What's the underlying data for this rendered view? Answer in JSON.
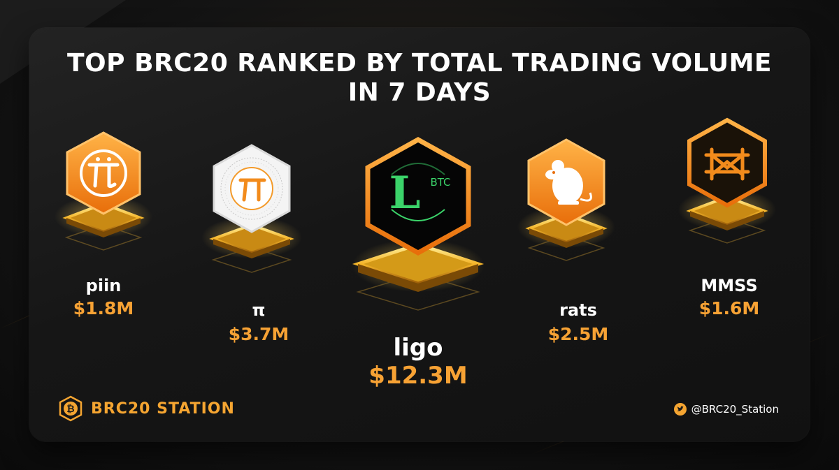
{
  "title": {
    "line1": "TOP BRC20 RANKED BY TOTAL TRADING VOLUME",
    "line2": "IN 7 DAYS"
  },
  "tokens": [
    {
      "name": "piin",
      "volume": "$1.8M",
      "icon": "pi-network-icon"
    },
    {
      "name": "π",
      "volume": "$3.7M",
      "icon": "pi-digits-icon"
    },
    {
      "name": "ligo",
      "volume": "$12.3M",
      "icon": "ligo-btc-icon",
      "logo_letter": "L",
      "logo_sub": "BTC"
    },
    {
      "name": "rats",
      "volume": "$2.5M",
      "icon": "rat-icon"
    },
    {
      "name": "MMSS",
      "volume": "$1.6M",
      "icon": "mmss-icon"
    }
  ],
  "brand": {
    "name": "BRC20 STATION",
    "icon": "bitcoin-icon"
  },
  "twitter": {
    "handle": "@BRC20_Station",
    "icon": "twitter-icon"
  },
  "colors": {
    "accent": "#f7a234",
    "gold": "#f5c53a",
    "background": "#111111",
    "green": "#3bd36a"
  }
}
